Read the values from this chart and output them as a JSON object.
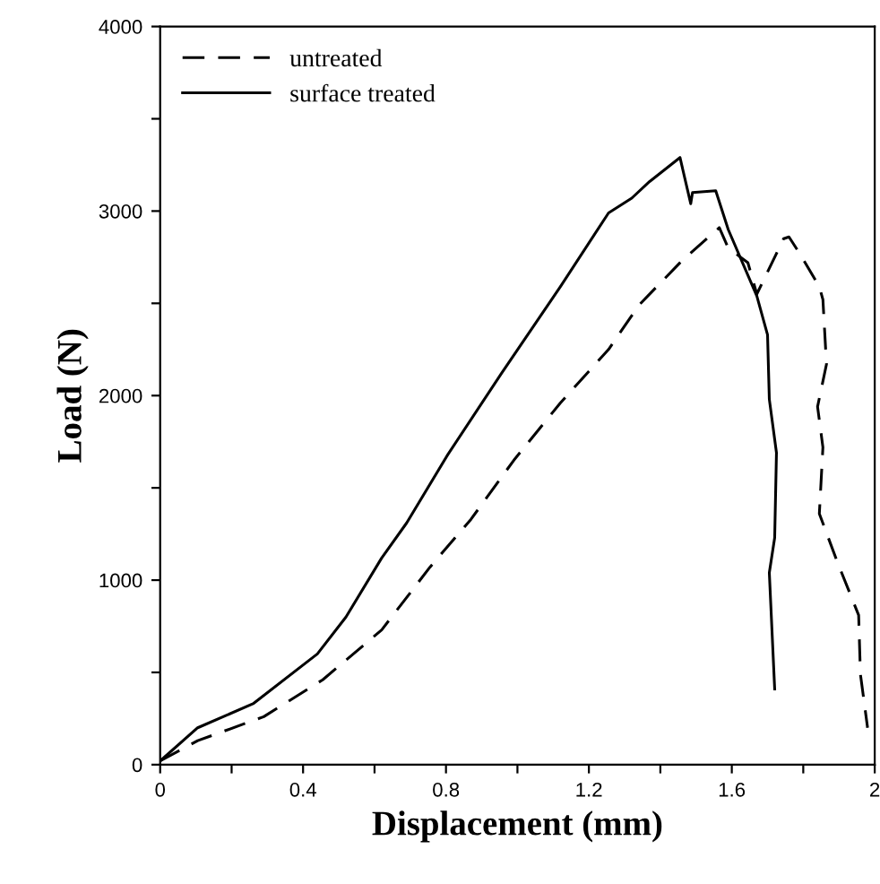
{
  "chart_data": {
    "type": "line",
    "xlabel": "Displacement (mm)",
    "ylabel": "Load (N)",
    "xlim": [
      0,
      2
    ],
    "ylim": [
      0,
      4000
    ],
    "xticks": [
      0,
      {
        "value": 0.2,
        "label": null
      },
      {
        "value": 0.4,
        "label": "0.4"
      },
      {
        "value": 0.6,
        "label": null
      },
      {
        "value": 0.8,
        "label": "0.8"
      },
      {
        "value": 1.0,
        "label": null
      },
      {
        "value": 1.2,
        "label": "1.2"
      },
      {
        "value": 1.4,
        "label": null
      },
      {
        "value": 1.6,
        "label": "1.6"
      },
      {
        "value": 1.8,
        "label": null
      },
      2
    ],
    "yticks": [
      0,
      {
        "value": 500,
        "label": null
      },
      1000,
      {
        "value": 1500,
        "label": null
      },
      2000,
      {
        "value": 2500,
        "label": null
      },
      3000,
      {
        "value": 3500,
        "label": null
      },
      4000
    ],
    "grid": false,
    "legend": "top left",
    "marker": "none",
    "series": [
      {
        "name": "untreated",
        "color": "#000000",
        "line_style": "dashed",
        "x": [
          0,
          0.105,
          0.29,
          0.455,
          0.62,
          0.755,
          0.87,
          0.99,
          1.12,
          1.255,
          1.34,
          1.46,
          1.565,
          1.59,
          1.645,
          1.67,
          1.745,
          1.76,
          1.79,
          1.845,
          1.855,
          1.865,
          1.84,
          1.855,
          1.845,
          1.895,
          1.955,
          1.96,
          1.98
        ],
        "values": [
          20,
          130,
          260,
          460,
          730,
          1070,
          1330,
          1650,
          1960,
          2250,
          2490,
          2730,
          2910,
          2800,
          2720,
          2550,
          2850,
          2860,
          2770,
          2590,
          2520,
          2170,
          1940,
          1720,
          1360,
          1100,
          810,
          490,
          200
        ]
      },
      {
        "name": "surface treated",
        "color": "#000000",
        "line_style": "solid",
        "x": [
          0,
          0.105,
          0.26,
          0.44,
          0.52,
          0.62,
          0.69,
          0.805,
          0.955,
          1.12,
          1.255,
          1.32,
          1.37,
          1.455,
          1.485,
          1.49,
          1.555,
          1.59,
          1.67,
          1.7,
          1.705,
          1.725,
          1.72,
          1.705,
          1.72
        ],
        "values": [
          20,
          200,
          330,
          600,
          800,
          1120,
          1310,
          1680,
          2120,
          2590,
          2990,
          3070,
          3160,
          3290,
          3040,
          3100,
          3110,
          2900,
          2540,
          2330,
          1980,
          1690,
          1230,
          1040,
          410
        ]
      }
    ]
  }
}
